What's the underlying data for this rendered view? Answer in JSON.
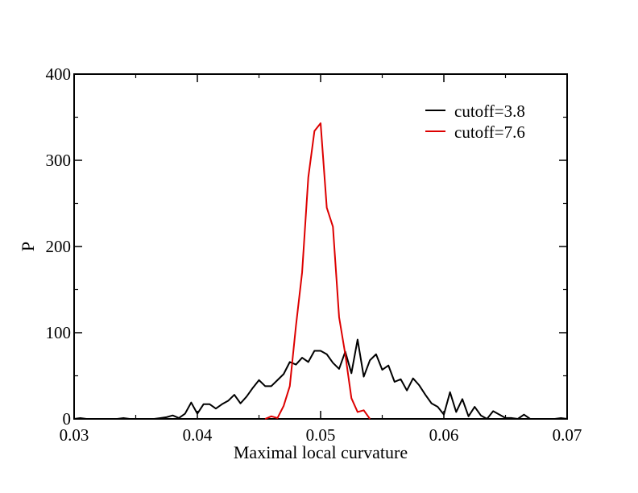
{
  "chart_data": {
    "type": "line",
    "title": "",
    "xlabel": "Maximal local curvature",
    "ylabel": "P",
    "xlim": [
      0.03,
      0.07
    ],
    "ylim": [
      0,
      400
    ],
    "x_ticks": [
      "0.03",
      "0.04",
      "0.05",
      "0.06",
      "0.07"
    ],
    "y_ticks": [
      "0",
      "100",
      "200",
      "300",
      "400"
    ],
    "grid": false,
    "legend_position": "top-right",
    "series": [
      {
        "name": "cutoff=3.8",
        "color": "#000000",
        "points": [
          [
            0.03,
            0
          ],
          [
            0.0305,
            1
          ],
          [
            0.031,
            0
          ],
          [
            0.0315,
            0
          ],
          [
            0.032,
            0
          ],
          [
            0.0325,
            0
          ],
          [
            0.033,
            0
          ],
          [
            0.0335,
            0
          ],
          [
            0.034,
            1
          ],
          [
            0.0345,
            0
          ],
          [
            0.035,
            0
          ],
          [
            0.0355,
            0
          ],
          [
            0.036,
            0
          ],
          [
            0.0365,
            0
          ],
          [
            0.037,
            1
          ],
          [
            0.0375,
            2
          ],
          [
            0.038,
            4
          ],
          [
            0.0385,
            1
          ],
          [
            0.039,
            6
          ],
          [
            0.0395,
            19
          ],
          [
            0.04,
            6
          ],
          [
            0.0405,
            17
          ],
          [
            0.041,
            17
          ],
          [
            0.0415,
            12
          ],
          [
            0.042,
            17
          ],
          [
            0.0425,
            21
          ],
          [
            0.043,
            28
          ],
          [
            0.0435,
            18
          ],
          [
            0.044,
            26
          ],
          [
            0.0445,
            36
          ],
          [
            0.045,
            45
          ],
          [
            0.0455,
            38
          ],
          [
            0.046,
            38
          ],
          [
            0.0465,
            45
          ],
          [
            0.047,
            52
          ],
          [
            0.0475,
            66
          ],
          [
            0.048,
            63
          ],
          [
            0.0485,
            71
          ],
          [
            0.049,
            66
          ],
          [
            0.0495,
            79
          ],
          [
            0.05,
            79
          ],
          [
            0.0505,
            75
          ],
          [
            0.051,
            65
          ],
          [
            0.0515,
            58
          ],
          [
            0.052,
            78
          ],
          [
            0.0525,
            53
          ],
          [
            0.053,
            92
          ],
          [
            0.0535,
            49
          ],
          [
            0.054,
            68
          ],
          [
            0.0545,
            75
          ],
          [
            0.055,
            57
          ],
          [
            0.0555,
            62
          ],
          [
            0.056,
            43
          ],
          [
            0.0565,
            46
          ],
          [
            0.057,
            33
          ],
          [
            0.0575,
            47
          ],
          [
            0.058,
            39
          ],
          [
            0.0585,
            28
          ],
          [
            0.059,
            18
          ],
          [
            0.0595,
            14
          ],
          [
            0.06,
            5
          ],
          [
            0.0605,
            31
          ],
          [
            0.061,
            8
          ],
          [
            0.0615,
            23
          ],
          [
            0.062,
            3
          ],
          [
            0.0625,
            14
          ],
          [
            0.063,
            4
          ],
          [
            0.0635,
            0
          ],
          [
            0.064,
            9
          ],
          [
            0.0645,
            5
          ],
          [
            0.065,
            1
          ],
          [
            0.0655,
            1
          ],
          [
            0.066,
            0
          ],
          [
            0.0665,
            5
          ],
          [
            0.067,
            0
          ],
          [
            0.0675,
            0
          ],
          [
            0.068,
            0
          ],
          [
            0.0685,
            0
          ],
          [
            0.069,
            0
          ],
          [
            0.0695,
            1
          ],
          [
            0.07,
            0
          ]
        ]
      },
      {
        "name": "cutoff=7.6",
        "color": "#dd0000",
        "points": [
          [
            0.0455,
            0
          ],
          [
            0.046,
            3
          ],
          [
            0.0465,
            1
          ],
          [
            0.047,
            15
          ],
          [
            0.0475,
            38
          ],
          [
            0.048,
            108
          ],
          [
            0.0485,
            170
          ],
          [
            0.049,
            280
          ],
          [
            0.0495,
            334
          ],
          [
            0.05,
            343
          ],
          [
            0.0505,
            245
          ],
          [
            0.051,
            223
          ],
          [
            0.0515,
            118
          ],
          [
            0.052,
            75
          ],
          [
            0.0525,
            24
          ],
          [
            0.053,
            8
          ],
          [
            0.0535,
            10
          ],
          [
            0.054,
            0
          ]
        ]
      }
    ]
  }
}
